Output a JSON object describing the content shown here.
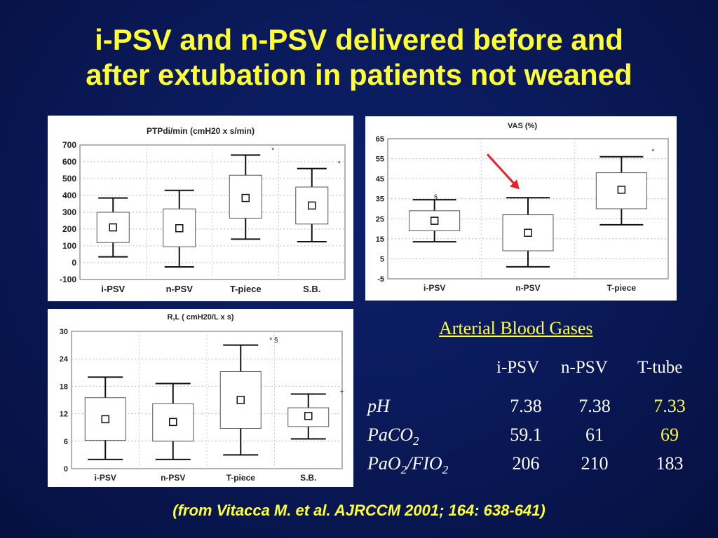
{
  "slide": {
    "title_line1": "i-PSV and n-PSV delivered before and",
    "title_line2": "after extubation in patients not weaned",
    "citation": "(from Vitacca M. et al. AJRCCM 2001; 164: 638-641)",
    "accent_color": "#ffff33",
    "background_color": "#0a1a5a"
  },
  "chart_data": [
    {
      "id": "ptpdi",
      "type": "box",
      "title": "PTPdi/min (cmH20 x s/min)",
      "categories": [
        "i-PSV",
        "n-PSV",
        "T-piece",
        "S.B."
      ],
      "ylim": [
        -100,
        700
      ],
      "yticks": [
        "700",
        "600",
        "500",
        "400",
        "300",
        "200",
        "100",
        "0",
        "-100"
      ],
      "boxes": [
        {
          "min": 35,
          "q1": 120,
          "median": 210,
          "q3": 300,
          "max": 385,
          "annotation": ""
        },
        {
          "min": -25,
          "q1": 95,
          "median": 205,
          "q3": 320,
          "max": 430,
          "annotation": ""
        },
        {
          "min": 140,
          "q1": 265,
          "median": 385,
          "q3": 520,
          "max": 640,
          "annotation": "*"
        },
        {
          "min": 125,
          "q1": 230,
          "median": 340,
          "q3": 450,
          "max": 560,
          "annotation": "*"
        }
      ]
    },
    {
      "id": "vas",
      "type": "box",
      "title": "VAS (%)",
      "categories": [
        "i-PSV",
        "n-PSV",
        "T-piece"
      ],
      "ylim": [
        -5,
        65
      ],
      "yticks": [
        "65",
        "55",
        "45",
        "35",
        "25",
        "15",
        "5",
        "-5"
      ],
      "boxes": [
        {
          "min": 13.5,
          "q1": 19,
          "median": 24,
          "q3": 29,
          "max": 34.5,
          "annotation": "§"
        },
        {
          "min": 1,
          "q1": 9,
          "median": 18,
          "q3": 27,
          "max": 35.5,
          "annotation": ""
        },
        {
          "min": 22,
          "q1": 30,
          "median": 39.5,
          "q3": 48,
          "max": 56,
          "annotation": "*"
        }
      ]
    },
    {
      "id": "rl",
      "type": "box",
      "title": "R,L ( cmH20/L x s)",
      "categories": [
        "i-PSV",
        "n-PSV",
        "T-piece",
        "S.B."
      ],
      "ylim": [
        0,
        30
      ],
      "yticks": [
        "30",
        "24",
        "18",
        "12",
        "6",
        "0"
      ],
      "boxes": [
        {
          "min": 2,
          "q1": 6.2,
          "median": 10.8,
          "q3": 15.5,
          "max": 20,
          "annotation": ""
        },
        {
          "min": 2,
          "q1": 6,
          "median": 10.2,
          "q3": 14.2,
          "max": 18.6,
          "annotation": ""
        },
        {
          "min": 3,
          "q1": 8.8,
          "median": 15,
          "q3": 21.2,
          "max": 27,
          "annotation": "* §"
        },
        {
          "min": 6.5,
          "q1": 9.2,
          "median": 11.5,
          "q3": 13.3,
          "max": 16.3,
          "annotation": "+"
        }
      ]
    }
  ],
  "abg": {
    "heading": "Arterial Blood Gases",
    "columns": [
      "i-PSV",
      "n-PSV",
      "T-tube"
    ],
    "rows": [
      {
        "label": "pH",
        "sub": "",
        "label2": "",
        "sub2": "",
        "values": [
          "7.38",
          "7.38",
          "7.33"
        ],
        "highlight": [
          false,
          false,
          true
        ]
      },
      {
        "label": "PaCO",
        "sub": "2",
        "label2": "",
        "sub2": "",
        "values": [
          "59.1",
          "61",
          "69"
        ],
        "highlight": [
          false,
          false,
          true
        ]
      },
      {
        "label": "PaO",
        "sub": "2",
        "label2": "/FIO",
        "sub2": "2",
        "values": [
          "206",
          "210",
          "183"
        ],
        "highlight": [
          false,
          false,
          false
        ]
      }
    ]
  }
}
